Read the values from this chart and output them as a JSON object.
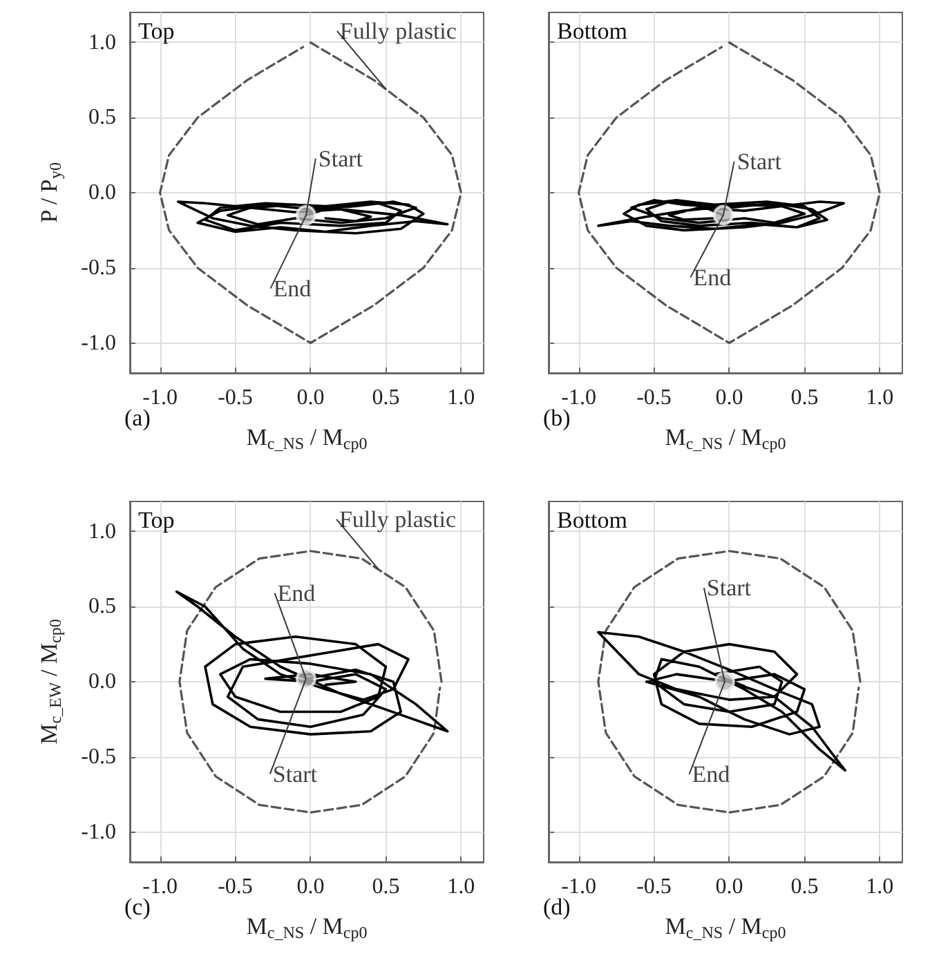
{
  "chart_data": [
    {
      "type": "line",
      "xlabel": "M$_{c_NS}$ / M$_{cp0}$",
      "ylabel": "P / P$_{y0}$",
      "xlim": [
        -1.2,
        1.15
      ],
      "ylim": [
        -1.2,
        1.2
      ],
      "xticks": [
        {
          "value": -1,
          "label": "-1.0"
        },
        {
          "value": -0.5,
          "label": "-0.5"
        },
        {
          "value": 0,
          "label": "0.0"
        },
        {
          "value": 0.5,
          "label": "0.5"
        },
        {
          "value": 1,
          "label": "1.0"
        }
      ],
      "yticks": [
        {
          "value": -1,
          "label": "-1.0"
        },
        {
          "value": -0.5,
          "label": "-0.5"
        },
        {
          "value": 0,
          "label": "0.0"
        },
        {
          "value": 0.5,
          "label": "0.5"
        },
        {
          "value": 1,
          "label": "1.0"
        }
      ],
      "grid": true,
      "series": [
        {
          "type": "line",
          "color": "#555555",
          "line_style": "dashed",
          "marker": "none",
          "x": [
            0,
            0.42,
            0.75,
            0.94,
            1,
            0.94,
            0.75,
            0.42,
            0,
            -0.42,
            -0.75,
            -0.94,
            -1,
            -0.94,
            -0.75,
            -0.42,
            -0.05
          ],
          "values": [
            1,
            0.75,
            0.5,
            0.25,
            0,
            -0.25,
            -0.5,
            -0.75,
            -1,
            -0.75,
            -0.5,
            -0.25,
            0,
            0.25,
            0.5,
            0.75,
            0.97
          ]
        },
        {
          "type": "line",
          "color": "#000000",
          "line_style": "solid",
          "marker": "none",
          "x": [
            -0.03,
            0.2,
            0.45,
            0.6,
            0.5,
            0.2,
            -0.2,
            -0.5,
            -0.7,
            -0.6,
            -0.3,
            0.1,
            0.4,
            0.65,
            0.75,
            0.6,
            0.3,
            -0.1,
            -0.4,
            -0.65,
            -0.88,
            -0.7,
            -0.4,
            -0.1,
            0.3,
            0.6,
            0.91,
            0.7,
            0.4,
            0.1,
            -0.2,
            -0.5,
            -0.75,
            -0.6,
            -0.3,
            0,
            0.3,
            0.55,
            0.7,
            0.5,
            0.2,
            -0.1,
            -0.35,
            -0.55,
            -0.4,
            -0.1,
            0.2,
            0.4,
            0.3,
            0.1
          ],
          "values": [
            -0.15,
            -0.08,
            -0.07,
            -0.12,
            -0.2,
            -0.22,
            -0.2,
            -0.25,
            -0.18,
            -0.1,
            -0.07,
            -0.09,
            -0.06,
            -0.08,
            -0.14,
            -0.24,
            -0.27,
            -0.25,
            -0.22,
            -0.17,
            -0.06,
            -0.07,
            -0.1,
            -0.08,
            -0.12,
            -0.15,
            -0.21,
            -0.19,
            -0.22,
            -0.26,
            -0.23,
            -0.26,
            -0.2,
            -0.12,
            -0.08,
            -0.11,
            -0.09,
            -0.06,
            -0.1,
            -0.17,
            -0.2,
            -0.17,
            -0.21,
            -0.15,
            -0.1,
            -0.13,
            -0.11,
            -0.16,
            -0.19,
            -0.17
          ]
        },
        {
          "type": "scatter",
          "color": "#b5b5b5",
          "marker": "circle",
          "x": [
            -0.03
          ],
          "values": [
            -0.15
          ]
        }
      ],
      "annotations": [
        "Top",
        {
          "text": "Fully plastic",
          "x": 0.5,
          "y": 0.69
        },
        {
          "text": "Start",
          "x": -0.03,
          "y": -0.15
        },
        {
          "text": "End",
          "x": -0.03,
          "y": -0.15
        },
        "(a)"
      ]
    },
    {
      "type": "line",
      "xlabel": "M$_{c_NS}$ / M$_{cp0}$",
      "xlim": [
        -1.2,
        1.15
      ],
      "ylim": [
        -1.2,
        1.2
      ],
      "tick_labels": "x",
      "xticks": [
        {
          "value": -1,
          "label": "-1.0"
        },
        {
          "value": -0.5,
          "label": "-0.5"
        },
        {
          "value": 0,
          "label": "0.0"
        },
        {
          "value": 0.5,
          "label": "0.5"
        },
        {
          "value": 1,
          "label": "1.0"
        }
      ],
      "yticks": [
        {
          "value": -1,
          "label": null
        },
        {
          "value": -0.5,
          "label": null
        },
        {
          "value": 0,
          "label": null
        },
        {
          "value": 0.5,
          "label": null
        },
        {
          "value": 1,
          "label": null
        }
      ],
      "grid": true,
      "series": [
        {
          "type": "line",
          "color": "#555555",
          "line_style": "dashed",
          "marker": "none",
          "x": [
            0,
            0.42,
            0.75,
            0.94,
            1,
            0.94,
            0.75,
            0.42,
            0,
            -0.42,
            -0.75,
            -0.94,
            -1,
            -0.94,
            -0.75,
            -0.42,
            -0.05
          ],
          "values": [
            1,
            0.75,
            0.5,
            0.25,
            0,
            -0.25,
            -0.5,
            -0.75,
            -1,
            -0.75,
            -0.5,
            -0.25,
            0,
            0.25,
            0.5,
            0.75,
            0.97
          ]
        },
        {
          "type": "line",
          "color": "#000000",
          "line_style": "solid",
          "marker": "none",
          "x": [
            -0.04,
            -0.2,
            -0.4,
            -0.55,
            -0.45,
            -0.2,
            0.15,
            0.45,
            0.6,
            0.5,
            0.25,
            -0.1,
            -0.35,
            -0.6,
            -0.7,
            -0.55,
            -0.3,
            0.1,
            0.35,
            0.55,
            0.76,
            0.6,
            0.35,
            0.1,
            -0.3,
            -0.55,
            -0.87,
            -0.65,
            -0.4,
            -0.1,
            0.2,
            0.45,
            0.65,
            0.55,
            0.3,
            0,
            -0.3,
            -0.5,
            -0.65,
            -0.45,
            -0.2,
            0.1,
            0.3,
            0.5,
            0.35,
            0.1,
            -0.2,
            -0.4,
            -0.3,
            -0.1
          ],
          "values": [
            -0.15,
            -0.08,
            -0.06,
            -0.11,
            -0.19,
            -0.22,
            -0.2,
            -0.23,
            -0.17,
            -0.09,
            -0.06,
            -0.08,
            -0.05,
            -0.08,
            -0.14,
            -0.22,
            -0.25,
            -0.23,
            -0.2,
            -0.15,
            -0.07,
            -0.06,
            -0.09,
            -0.08,
            -0.12,
            -0.16,
            -0.22,
            -0.19,
            -0.22,
            -0.24,
            -0.21,
            -0.23,
            -0.18,
            -0.11,
            -0.07,
            -0.1,
            -0.08,
            -0.05,
            -0.1,
            -0.17,
            -0.2,
            -0.17,
            -0.2,
            -0.14,
            -0.09,
            -0.12,
            -0.1,
            -0.15,
            -0.18,
            -0.17
          ]
        },
        {
          "type": "scatter",
          "color": "#b5b5b5",
          "marker": "circle",
          "x": [
            -0.04
          ],
          "values": [
            -0.15
          ]
        }
      ],
      "annotations": [
        "Bottom",
        {
          "text": "Start",
          "x": -0.04,
          "y": -0.15
        },
        {
          "text": "End",
          "x": -0.04,
          "y": -0.15
        },
        "(b)"
      ]
    },
    {
      "type": "line",
      "xlabel": "M$_{c_NS}$ / M$_{cp0}$",
      "ylabel": "M$_{c_EW}$ / M$_{cp0}$",
      "xlim": [
        -1.2,
        1.15
      ],
      "ylim": [
        -1.2,
        1.2
      ],
      "xticks": [
        {
          "value": -1,
          "label": "-1.0"
        },
        {
          "value": -0.5,
          "label": "-0.5"
        },
        {
          "value": 0,
          "label": "0.0"
        },
        {
          "value": 0.5,
          "label": "0.5"
        },
        {
          "value": 1,
          "label": "1.0"
        }
      ],
      "yticks": [
        {
          "value": -1,
          "label": "-1.0"
        },
        {
          "value": -0.5,
          "label": "-0.5"
        },
        {
          "value": 0,
          "label": "0.0"
        },
        {
          "value": 0.5,
          "label": "0.5"
        },
        {
          "value": 1,
          "label": "1.0"
        }
      ],
      "grid": true,
      "series": [
        {
          "type": "line",
          "color": "#555555",
          "line_style": "dashed",
          "marker": "none",
          "x": [
            0.87,
            0.82,
            0.63,
            0.34,
            0,
            -0.34,
            -0.63,
            -0.82,
            -0.87,
            -0.82,
            -0.63,
            -0.34,
            0,
            0.34,
            0.63,
            0.82,
            0.86
          ],
          "values": [
            0,
            0.34,
            0.63,
            0.82,
            0.87,
            0.82,
            0.63,
            0.34,
            0,
            -0.34,
            -0.63,
            -0.82,
            -0.87,
            -0.82,
            -0.63,
            -0.34,
            -0.04
          ]
        },
        {
          "type": "line",
          "color": "#000000",
          "line_style": "solid",
          "marker": "none",
          "x": [
            -0.03,
            0.3,
            0.55,
            0.6,
            0.4,
            0,
            -0.4,
            -0.65,
            -0.7,
            -0.5,
            -0.1,
            0.3,
            0.5,
            0.45,
            0.2,
            -0.2,
            -0.5,
            -0.6,
            -0.4,
            0,
            0.4,
            0.7,
            0.91,
            0.6,
            0.2,
            -0.2,
            -0.5,
            -0.75,
            -0.89,
            -0.7,
            -0.45,
            -0.2,
            0.1,
            0.35,
            0.55,
            0.65,
            0.45,
            0.15,
            -0.15,
            -0.45,
            -0.55,
            -0.35,
            0,
            0.35,
            0.5,
            0.3,
            0,
            -0.3,
            0,
            0.3,
            0.1
          ],
          "values": [
            0.02,
            0.08,
            0,
            -0.2,
            -0.33,
            -0.35,
            -0.3,
            -0.15,
            0.1,
            0.25,
            0.3,
            0.25,
            0.1,
            -0.1,
            -0.2,
            -0.2,
            -0.1,
            0.05,
            0.15,
            0.12,
            0.05,
            -0.15,
            -0.33,
            -0.22,
            -0.08,
            0.1,
            0.3,
            0.5,
            0.6,
            0.5,
            0.22,
            0.05,
            -0.05,
            -0.12,
            -0.05,
            0.15,
            0.25,
            0.2,
            0.15,
            0.1,
            -0.1,
            -0.25,
            -0.3,
            -0.22,
            -0.05,
            0.05,
            0,
            0.02,
            0.05,
            0,
            -0.02
          ]
        },
        {
          "type": "scatter",
          "color": "#b5b5b5",
          "marker": "circle",
          "x": [
            -0.03
          ],
          "values": [
            0.02
          ]
        }
      ],
      "annotations": [
        "Top",
        {
          "text": "Fully plastic",
          "x": 0.45,
          "y": 0.75
        },
        {
          "text": "End",
          "x": -0.03,
          "y": 0.02
        },
        {
          "text": "Start",
          "x": -0.03,
          "y": 0.02
        },
        "(c)"
      ]
    },
    {
      "type": "line",
      "xlabel": "M$_{c_NS}$ / M$_{cp0}$",
      "xlim": [
        -1.2,
        1.15
      ],
      "ylim": [
        -1.2,
        1.2
      ],
      "tick_labels": "x",
      "xticks": [
        {
          "value": -1,
          "label": "-1.0"
        },
        {
          "value": -0.5,
          "label": "-0.5"
        },
        {
          "value": 0,
          "label": "0.0"
        },
        {
          "value": 0.5,
          "label": "0.5"
        },
        {
          "value": 1,
          "label": "1.0"
        }
      ],
      "yticks": [
        {
          "value": -1,
          "label": null
        },
        {
          "value": -0.5,
          "label": null
        },
        {
          "value": 0,
          "label": null
        },
        {
          "value": 0.5,
          "label": null
        },
        {
          "value": 1,
          "label": null
        }
      ],
      "grid": true,
      "series": [
        {
          "type": "line",
          "color": "#555555",
          "line_style": "dashed",
          "marker": "none",
          "x": [
            0.87,
            0.82,
            0.63,
            0.34,
            0,
            -0.34,
            -0.63,
            -0.82,
            -0.87,
            -0.82,
            -0.63,
            -0.34,
            0,
            0.34,
            0.63,
            0.82,
            0.86
          ],
          "values": [
            0,
            0.34,
            0.63,
            0.82,
            0.87,
            0.82,
            0.63,
            0.34,
            0,
            -0.34,
            -0.63,
            -0.82,
            -0.87,
            -0.82,
            -0.63,
            -0.34,
            -0.04
          ]
        },
        {
          "type": "line",
          "color": "#000000",
          "line_style": "solid",
          "marker": "none",
          "x": [
            -0.03,
            0.3,
            0.5,
            0.45,
            0.15,
            -0.2,
            -0.45,
            -0.5,
            -0.3,
            0,
            0.3,
            0.45,
            0.3,
            0,
            -0.35,
            -0.6,
            -0.87,
            -0.6,
            -0.3,
            0,
            0.3,
            0.55,
            0.6,
            0.4,
            0.1,
            -0.2,
            -0.55,
            -0.35,
            0,
            0.3,
            0.55,
            0.7,
            0.77,
            0.6,
            0.35,
            0.1,
            -0.2,
            -0.45,
            -0.5,
            -0.3,
            0,
            0.3,
            0.35,
            0.2,
            -0.1,
            0.1
          ],
          "values": [
            0,
            0.05,
            -0.05,
            -0.2,
            -0.3,
            -0.28,
            -0.15,
            0.05,
            0.2,
            0.25,
            0.2,
            0.05,
            -0.1,
            -0.12,
            -0.05,
            0.05,
            0.33,
            0.3,
            0.2,
            0.08,
            -0.05,
            -0.15,
            -0.3,
            -0.35,
            -0.25,
            -0.1,
            0,
            0.05,
            0,
            -0.1,
            -0.3,
            -0.5,
            -0.59,
            -0.45,
            -0.2,
            -0.05,
            0.1,
            0.15,
            0,
            -0.15,
            -0.2,
            -0.15,
            0,
            0.1,
            0.05,
            -0.03
          ]
        },
        {
          "type": "scatter",
          "color": "#b5b5b5",
          "marker": "circle",
          "x": [
            -0.03
          ],
          "values": [
            0
          ]
        }
      ],
      "annotations": [
        "Bottom",
        {
          "text": "Start",
          "x": -0.03,
          "y": 0
        },
        {
          "text": "End",
          "x": -0.03,
          "y": 0
        },
        "(d)"
      ]
    }
  ]
}
